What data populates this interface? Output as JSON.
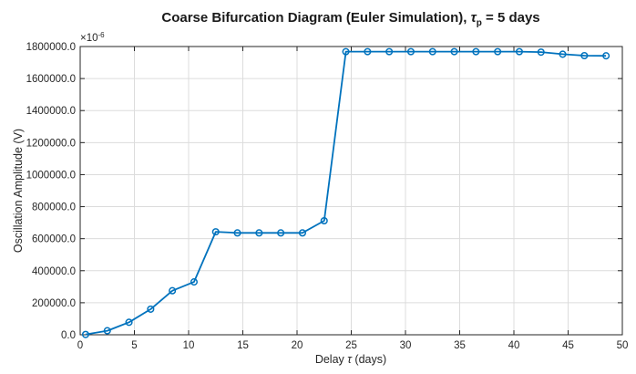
{
  "chart_data": {
    "type": "line",
    "title_main": "Coarse Bifurcation Diagram (Euler Simulation), ",
    "title_symbol": "τ",
    "title_subscript": "p",
    "title_tail": " = 5 days",
    "xlabel_main": "Delay ",
    "xlabel_symbol": "τ",
    "xlabel_tail": " (days)",
    "ylabel": "Oscillation Amplitude (V)",
    "y_exponent_base": "×10",
    "y_exponent_power": "-6",
    "xlim": [
      0,
      50
    ],
    "ylim": [
      0,
      1800000
    ],
    "xticks": [
      0,
      5,
      10,
      15,
      20,
      25,
      30,
      35,
      40,
      45,
      50
    ],
    "xtick_labels": [
      "0",
      "5",
      "10",
      "15",
      "20",
      "25",
      "30",
      "35",
      "40",
      "45",
      "50"
    ],
    "yticks": [
      0,
      200000,
      400000,
      600000,
      800000,
      1000000,
      1200000,
      1400000,
      1600000,
      1800000
    ],
    "ytick_labels": [
      "0.0",
      "200000.0",
      "400000.0",
      "600000.0",
      "800000.0",
      "1000000.0",
      "1200000.0",
      "1400000.0",
      "1600000.0",
      "1800000.0"
    ],
    "grid": true,
    "series": [
      {
        "color": "#0072BD",
        "marker": "circle",
        "x": [
          0.5,
          2.5,
          4.5,
          6.5,
          8.5,
          10.5,
          12.5,
          14.5,
          16.5,
          18.5,
          20.5,
          22.5,
          24.5,
          26.5,
          28.5,
          30.5,
          32.5,
          34.5,
          36.5,
          38.5,
          40.5,
          42.5,
          44.5,
          46.5,
          48.5
        ],
        "y": [
          2000,
          25000,
          78000,
          160000,
          275000,
          330000,
          643000,
          636000,
          636000,
          636000,
          636000,
          712000,
          1768000,
          1768000,
          1768000,
          1768000,
          1768000,
          1768000,
          1768000,
          1768000,
          1768000,
          1765000,
          1752000,
          1743000,
          1742000
        ]
      }
    ]
  }
}
